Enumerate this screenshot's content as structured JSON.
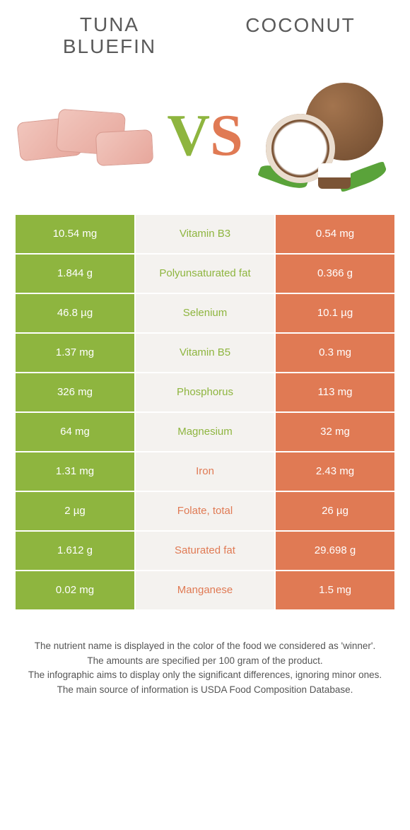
{
  "colors": {
    "left": "#8eb53f",
    "right": "#e07a54",
    "mid_bg": "#f4f2ef",
    "text_grey": "#5a5a5a"
  },
  "header": {
    "left_title_line1": "Tuna",
    "left_title_line2": "Bluefin",
    "right_title": "Coconut",
    "vs_v": "V",
    "vs_s": "S"
  },
  "rows": [
    {
      "left": "10.54 mg",
      "label": "Vitamin B3",
      "right": "0.54 mg",
      "winner": "left"
    },
    {
      "left": "1.844 g",
      "label": "Polyunsaturated fat",
      "right": "0.366 g",
      "winner": "left"
    },
    {
      "left": "46.8 µg",
      "label": "Selenium",
      "right": "10.1 µg",
      "winner": "left"
    },
    {
      "left": "1.37 mg",
      "label": "Vitamin B5",
      "right": "0.3 mg",
      "winner": "left"
    },
    {
      "left": "326 mg",
      "label": "Phosphorus",
      "right": "113 mg",
      "winner": "left"
    },
    {
      "left": "64 mg",
      "label": "Magnesium",
      "right": "32 mg",
      "winner": "left"
    },
    {
      "left": "1.31 mg",
      "label": "Iron",
      "right": "2.43 mg",
      "winner": "right"
    },
    {
      "left": "2 µg",
      "label": "Folate, total",
      "right": "26 µg",
      "winner": "right"
    },
    {
      "left": "1.612 g",
      "label": "Saturated fat",
      "right": "29.698 g",
      "winner": "right"
    },
    {
      "left": "0.02 mg",
      "label": "Manganese",
      "right": "1.5 mg",
      "winner": "right"
    }
  ],
  "notes": {
    "line1": "The nutrient name is displayed in the color of the food we considered as 'winner'.",
    "line2": "The amounts are specified per 100 gram of the product.",
    "line3": "The infographic aims to display only the significant differences, ignoring minor ones.",
    "line4": "The main source of information is USDA Food Composition Database."
  }
}
